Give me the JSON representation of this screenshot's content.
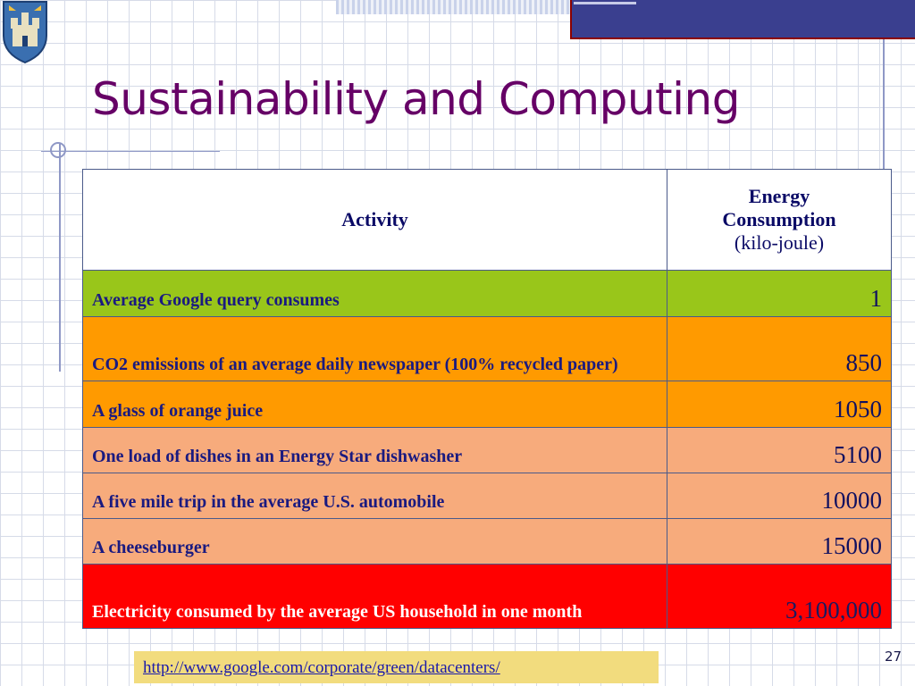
{
  "slide": {
    "title": "Sustainability and Computing",
    "page_number": "27",
    "source_url": "http://www.google.com/corporate/green/datacenters/"
  },
  "table": {
    "header": {
      "activity": "Activity",
      "energy_line1": "Energy",
      "energy_line2": "Consumption",
      "energy_unit": "(kilo-joule)"
    },
    "rows": [
      {
        "activity": "Average Google query consumes",
        "value": "1",
        "color": "#99c61a"
      },
      {
        "activity": "CO2 emissions of an average daily newspaper (100% recycled paper)",
        "value": "850",
        "color": "#ff9a00"
      },
      {
        "activity": "A glass of orange juice",
        "value": "1050",
        "color": "#ff9a00"
      },
      {
        "activity": "One load of dishes in an Energy Star dishwasher",
        "value": "5100",
        "color": "#f7ab7c"
      },
      {
        "activity": "A five mile trip in the average U.S. automobile",
        "value": "10000",
        "color": "#f7ab7c"
      },
      {
        "activity": "A cheeseburger",
        "value": "15000",
        "color": "#f7ab7c"
      },
      {
        "activity": "Electricity consumed by the average US household in one month",
        "value": "3,100,000",
        "color": "#ff0000"
      }
    ]
  },
  "colors": {
    "title": "#660066",
    "accent_bar": "#3a3f8f",
    "url_box": "#f2dc7e"
  },
  "icons": {
    "crest": "university-crest-icon"
  }
}
